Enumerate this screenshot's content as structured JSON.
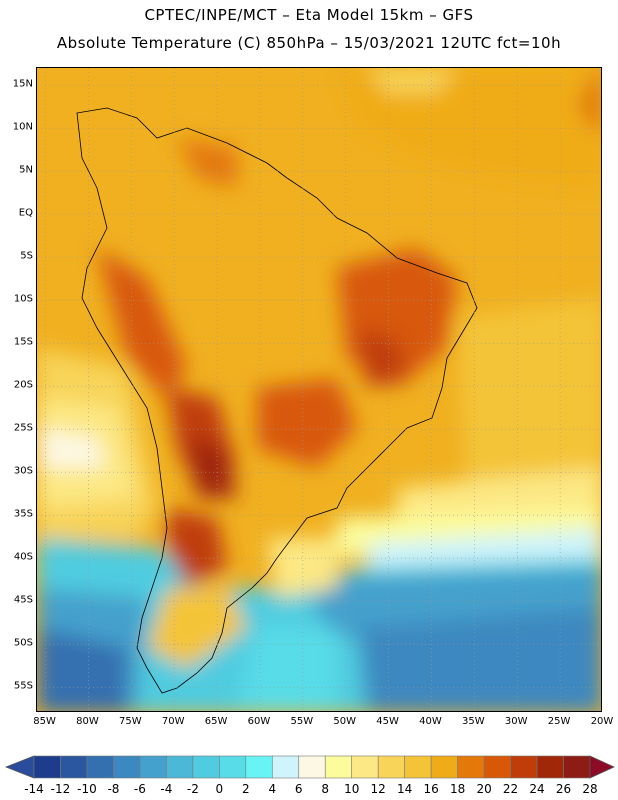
{
  "header": {
    "line1": "CPTEC/INPE/MCT –  Eta Model 15km – GFS",
    "line2": "Absolute Temperature (C) 850hPa – 15/03/2021 12UTC fct=10h"
  },
  "map": {
    "lat_labels": [
      "15N",
      "10N",
      "5N",
      "EQ",
      "5S",
      "10S",
      "15S",
      "20S",
      "25S",
      "30S",
      "35S",
      "40S",
      "45S",
      "50S",
      "55S"
    ],
    "lat_values": [
      15,
      10,
      5,
      0,
      -5,
      -10,
      -15,
      -20,
      -25,
      -30,
      -35,
      -40,
      -45,
      -50,
      -55
    ],
    "lon_labels": [
      "85W",
      "80W",
      "75W",
      "70W",
      "65W",
      "60W",
      "55W",
      "50W",
      "45W",
      "40W",
      "35W",
      "30W",
      "25W",
      "20W"
    ],
    "lon_values": [
      -85,
      -80,
      -75,
      -70,
      -65,
      -60,
      -55,
      -50,
      -45,
      -40,
      -35,
      -30,
      -25,
      -20
    ],
    "extent": {
      "lon_min": -86,
      "lon_max": -20,
      "lat_min": -58,
      "lat_max": 17
    },
    "gridlines": true
  },
  "colorbar": {
    "labels": [
      "-14",
      "-12",
      "-10",
      "-8",
      "-6",
      "-4",
      "-2",
      "0",
      "2",
      "4",
      "6",
      "8",
      "10",
      "12",
      "14",
      "16",
      "18",
      "20",
      "22",
      "24",
      "26",
      "28"
    ],
    "colors": [
      "#1e3c8c",
      "#2a57a0",
      "#3470b0",
      "#3c88c0",
      "#44a0cc",
      "#4cb8d8",
      "#50cce0",
      "#58dce8",
      "#68f4f4",
      "#cff4fc",
      "#fcf8e4",
      "#fcfc9c",
      "#fce884",
      "#f8d458",
      "#f4c438",
      "#f0ac18",
      "#e47808",
      "#d85808",
      "#c03c08",
      "#a02808",
      "#8c1c14"
    ],
    "under_color": "#2a4c9c",
    "over_color": "#8c0c28"
  }
}
